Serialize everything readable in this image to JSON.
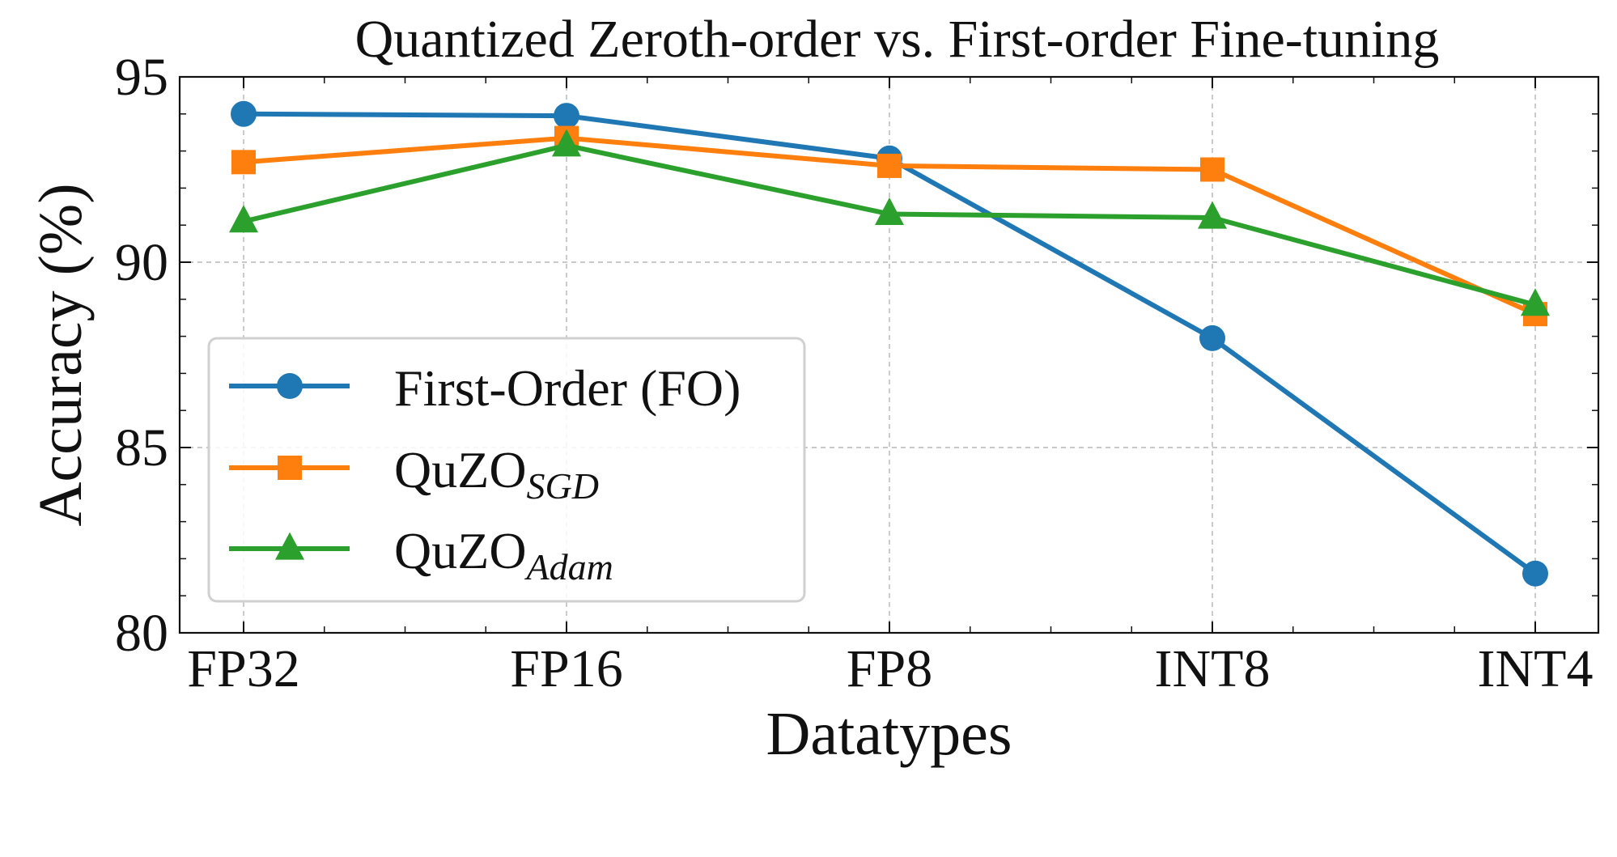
{
  "chart_data": {
    "type": "line",
    "title": "Quantized Zeroth-order vs. First-order Fine-tuning",
    "xlabel": "Datatypes",
    "ylabel": "Accuracy (%)",
    "categories": [
      "FP32",
      "FP16",
      "FP8",
      "INT8",
      "INT4"
    ],
    "ylim": [
      80,
      95
    ],
    "yticks": [
      80,
      85,
      90,
      95
    ],
    "grid": true,
    "legend_position": "lower-left",
    "series": [
      {
        "name": "First-Order (FO)",
        "name_base": "First-Order (FO)",
        "name_sub": "",
        "color": "#1f77b4",
        "marker": "circle",
        "values": [
          94.0,
          93.95,
          92.8,
          87.95,
          81.6
        ]
      },
      {
        "name": "QuZO SGD",
        "name_base": "QuZO",
        "name_sub": "SGD",
        "color": "#ff7f0e",
        "marker": "square",
        "values": [
          92.7,
          93.35,
          92.6,
          92.5,
          88.6
        ]
      },
      {
        "name": "QuZO Adam",
        "name_base": "QuZO",
        "name_sub": "Adam",
        "color": "#2ca02c",
        "marker": "triangle",
        "values": [
          91.1,
          93.15,
          91.3,
          91.2,
          88.85
        ]
      }
    ]
  }
}
